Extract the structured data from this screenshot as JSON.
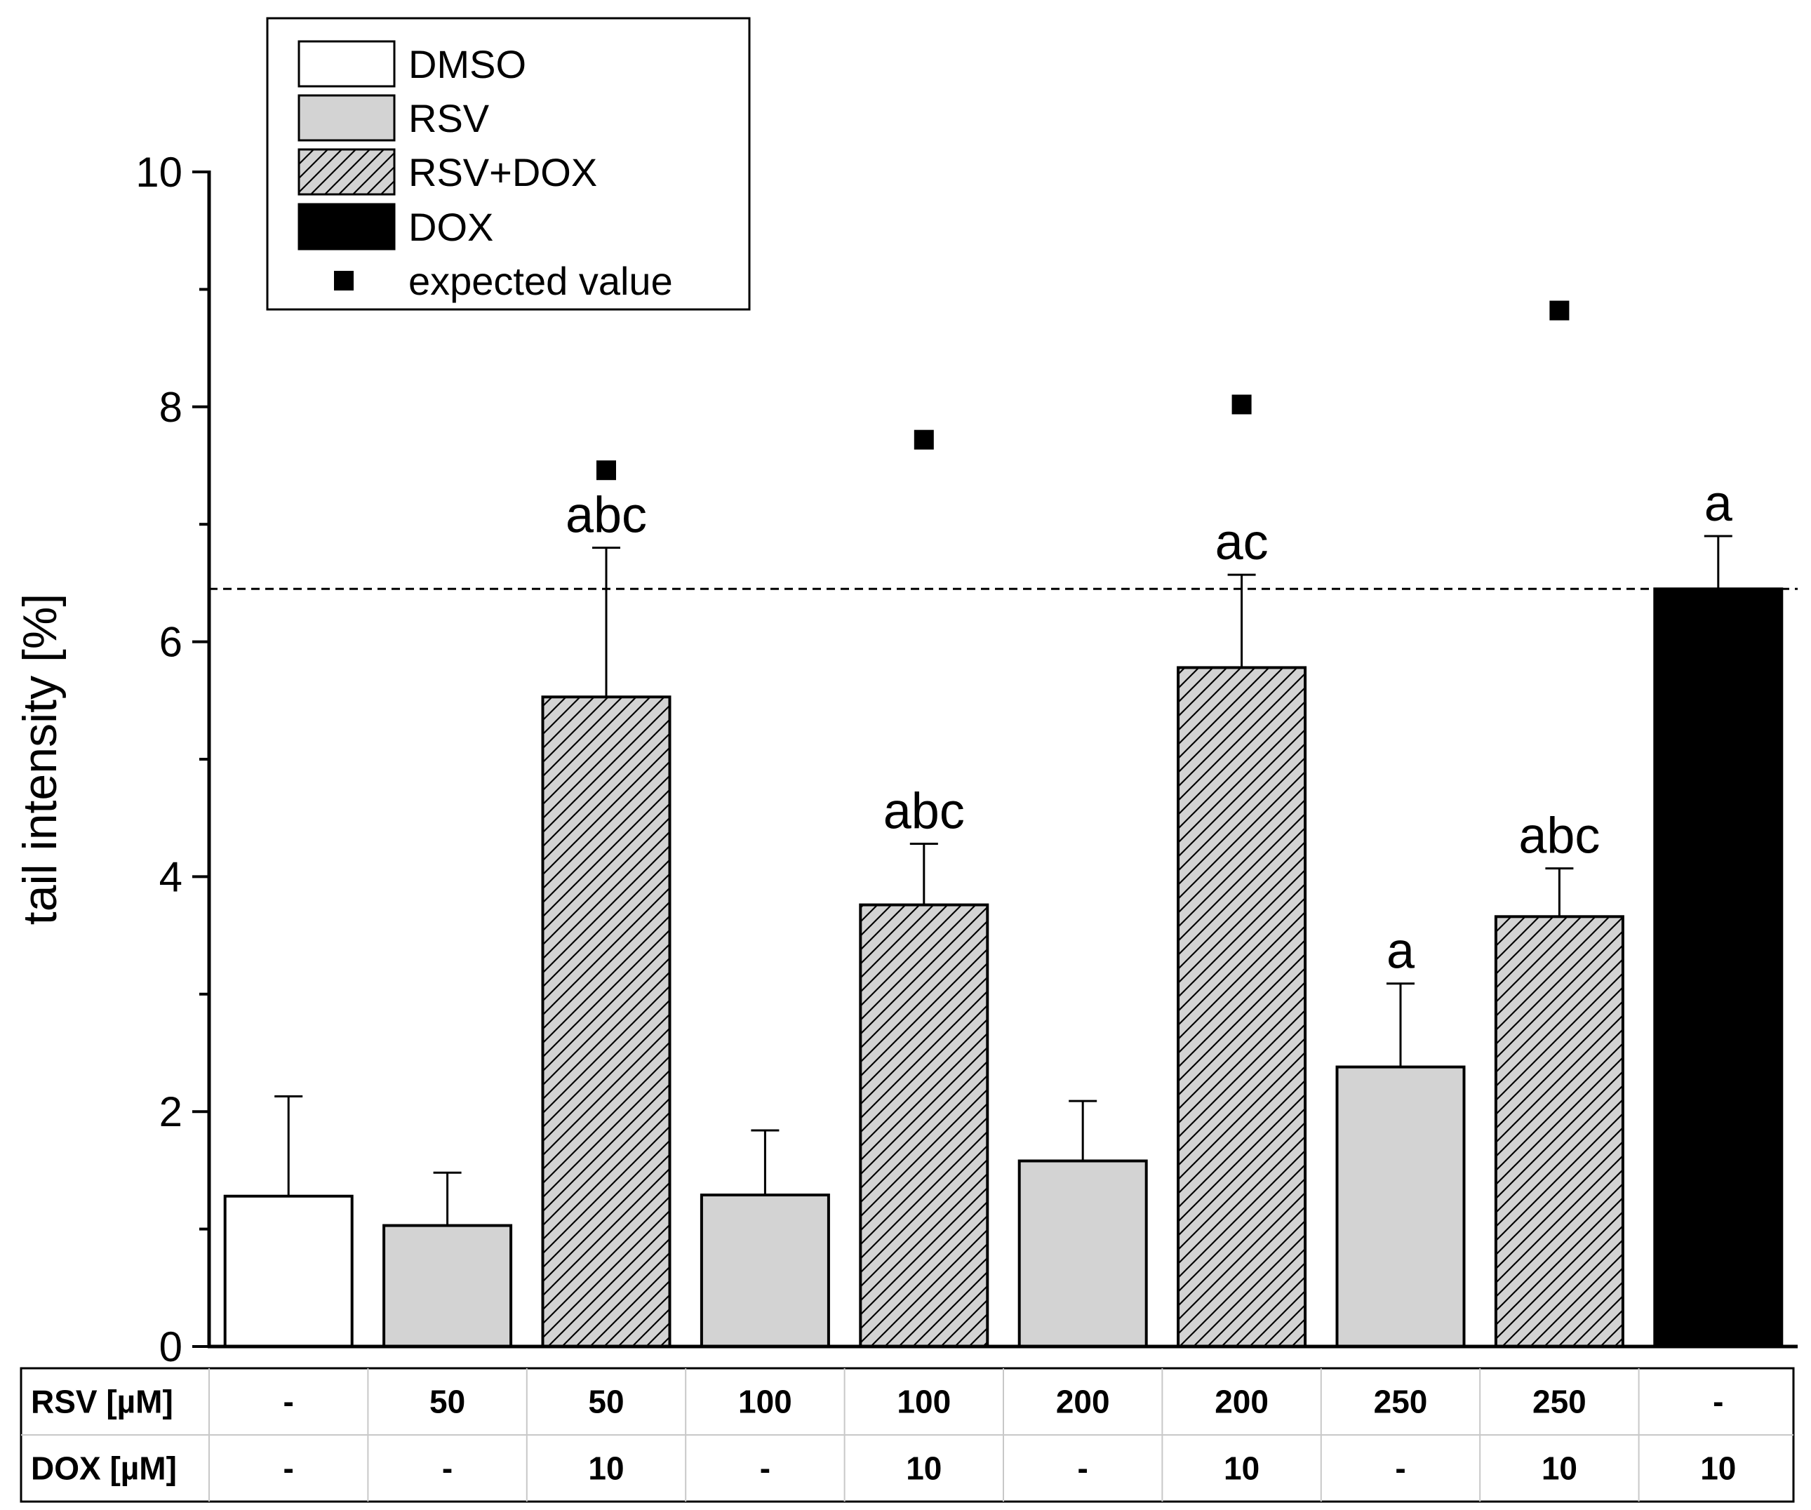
{
  "chart_data": {
    "type": "bar",
    "ylabel": "tail intensity [%]",
    "ylim": [
      0,
      10
    ],
    "yticks": [
      0,
      2,
      4,
      6,
      8,
      10
    ],
    "reference_line": 6.45,
    "legend": {
      "position": "top-left",
      "entries": [
        {
          "label": "DMSO",
          "style": "open"
        },
        {
          "label": "RSV",
          "style": "gray"
        },
        {
          "label": "RSV+DOX",
          "style": "hatched"
        },
        {
          "label": "DOX",
          "style": "black"
        },
        {
          "label": "expected value",
          "style": "marker"
        }
      ]
    },
    "bars": [
      {
        "group": "DMSO",
        "value": 1.28,
        "error": 0.85,
        "label": "",
        "expected": null
      },
      {
        "group": "RSV",
        "value": 1.03,
        "error": 0.45,
        "label": "",
        "expected": null
      },
      {
        "group": "RSV+DOX",
        "value": 5.53,
        "error": 1.27,
        "label": "abc",
        "expected": 7.46
      },
      {
        "group": "RSV",
        "value": 1.29,
        "error": 0.55,
        "label": "",
        "expected": null
      },
      {
        "group": "RSV+DOX",
        "value": 3.76,
        "error": 0.52,
        "label": "abc",
        "expected": 7.72
      },
      {
        "group": "RSV",
        "value": 1.58,
        "error": 0.51,
        "label": "",
        "expected": null
      },
      {
        "group": "RSV+DOX",
        "value": 5.78,
        "error": 0.79,
        "label": "ac",
        "expected": 8.02
      },
      {
        "group": "RSV",
        "value": 2.38,
        "error": 0.71,
        "label": "a",
        "expected": null
      },
      {
        "group": "RSV+DOX",
        "value": 3.66,
        "error": 0.41,
        "label": "abc",
        "expected": 8.82
      },
      {
        "group": "DOX",
        "value": 6.45,
        "error": 0.45,
        "label": "a",
        "expected": null
      }
    ],
    "table": {
      "rows": [
        {
          "header": "RSV [µM]",
          "cells": [
            "-",
            "50",
            "50",
            "100",
            "100",
            "200",
            "200",
            "250",
            "250",
            "-"
          ]
        },
        {
          "header": "DOX [µM]",
          "cells": [
            "-",
            "-",
            "10",
            "-",
            "10",
            "-",
            "10",
            "-",
            "10",
            "10"
          ]
        }
      ]
    },
    "colors": {
      "DMSO": "#ffffff",
      "RSV": "#d3d3d3",
      "RSV+DOX": "#d3d3d3",
      "DOX": "#000000",
      "axis": "#000000"
    }
  }
}
